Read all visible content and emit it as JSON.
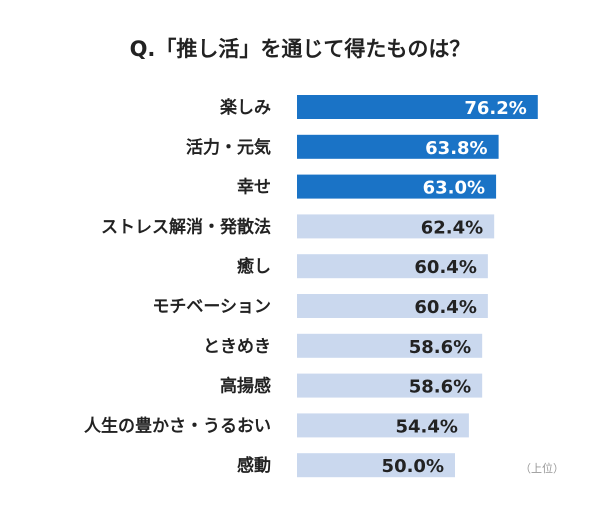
{
  "chart_data": {
    "type": "bar",
    "orientation": "horizontal",
    "title": "Q.「推し活」を通じて得たものは？",
    "categories": [
      "楽しみ",
      "活力・元気",
      "幸せ",
      "ストレス解消・発散法",
      "癒し",
      "モチベーション",
      "ときめき",
      "高揚感",
      "人生の豊かさ・うるおい",
      "感動"
    ],
    "values": [
      76.2,
      63.8,
      63.0,
      62.4,
      60.4,
      60.4,
      58.6,
      58.6,
      54.4,
      50.0
    ],
    "value_labels": [
      "76.2%",
      "63.8%",
      "63.0%",
      "62.4%",
      "60.4%",
      "60.4%",
      "58.6%",
      "58.6%",
      "54.4%",
      "50.0%"
    ],
    "highlighted_count": 3,
    "colors": {
      "highlight": "#1a73c6",
      "normal": "#cad8ee",
      "highlight_text": "#ffffff",
      "normal_text": "#222222"
    },
    "note": "（上位）",
    "xlabel": "",
    "ylabel": "",
    "grid": false
  }
}
